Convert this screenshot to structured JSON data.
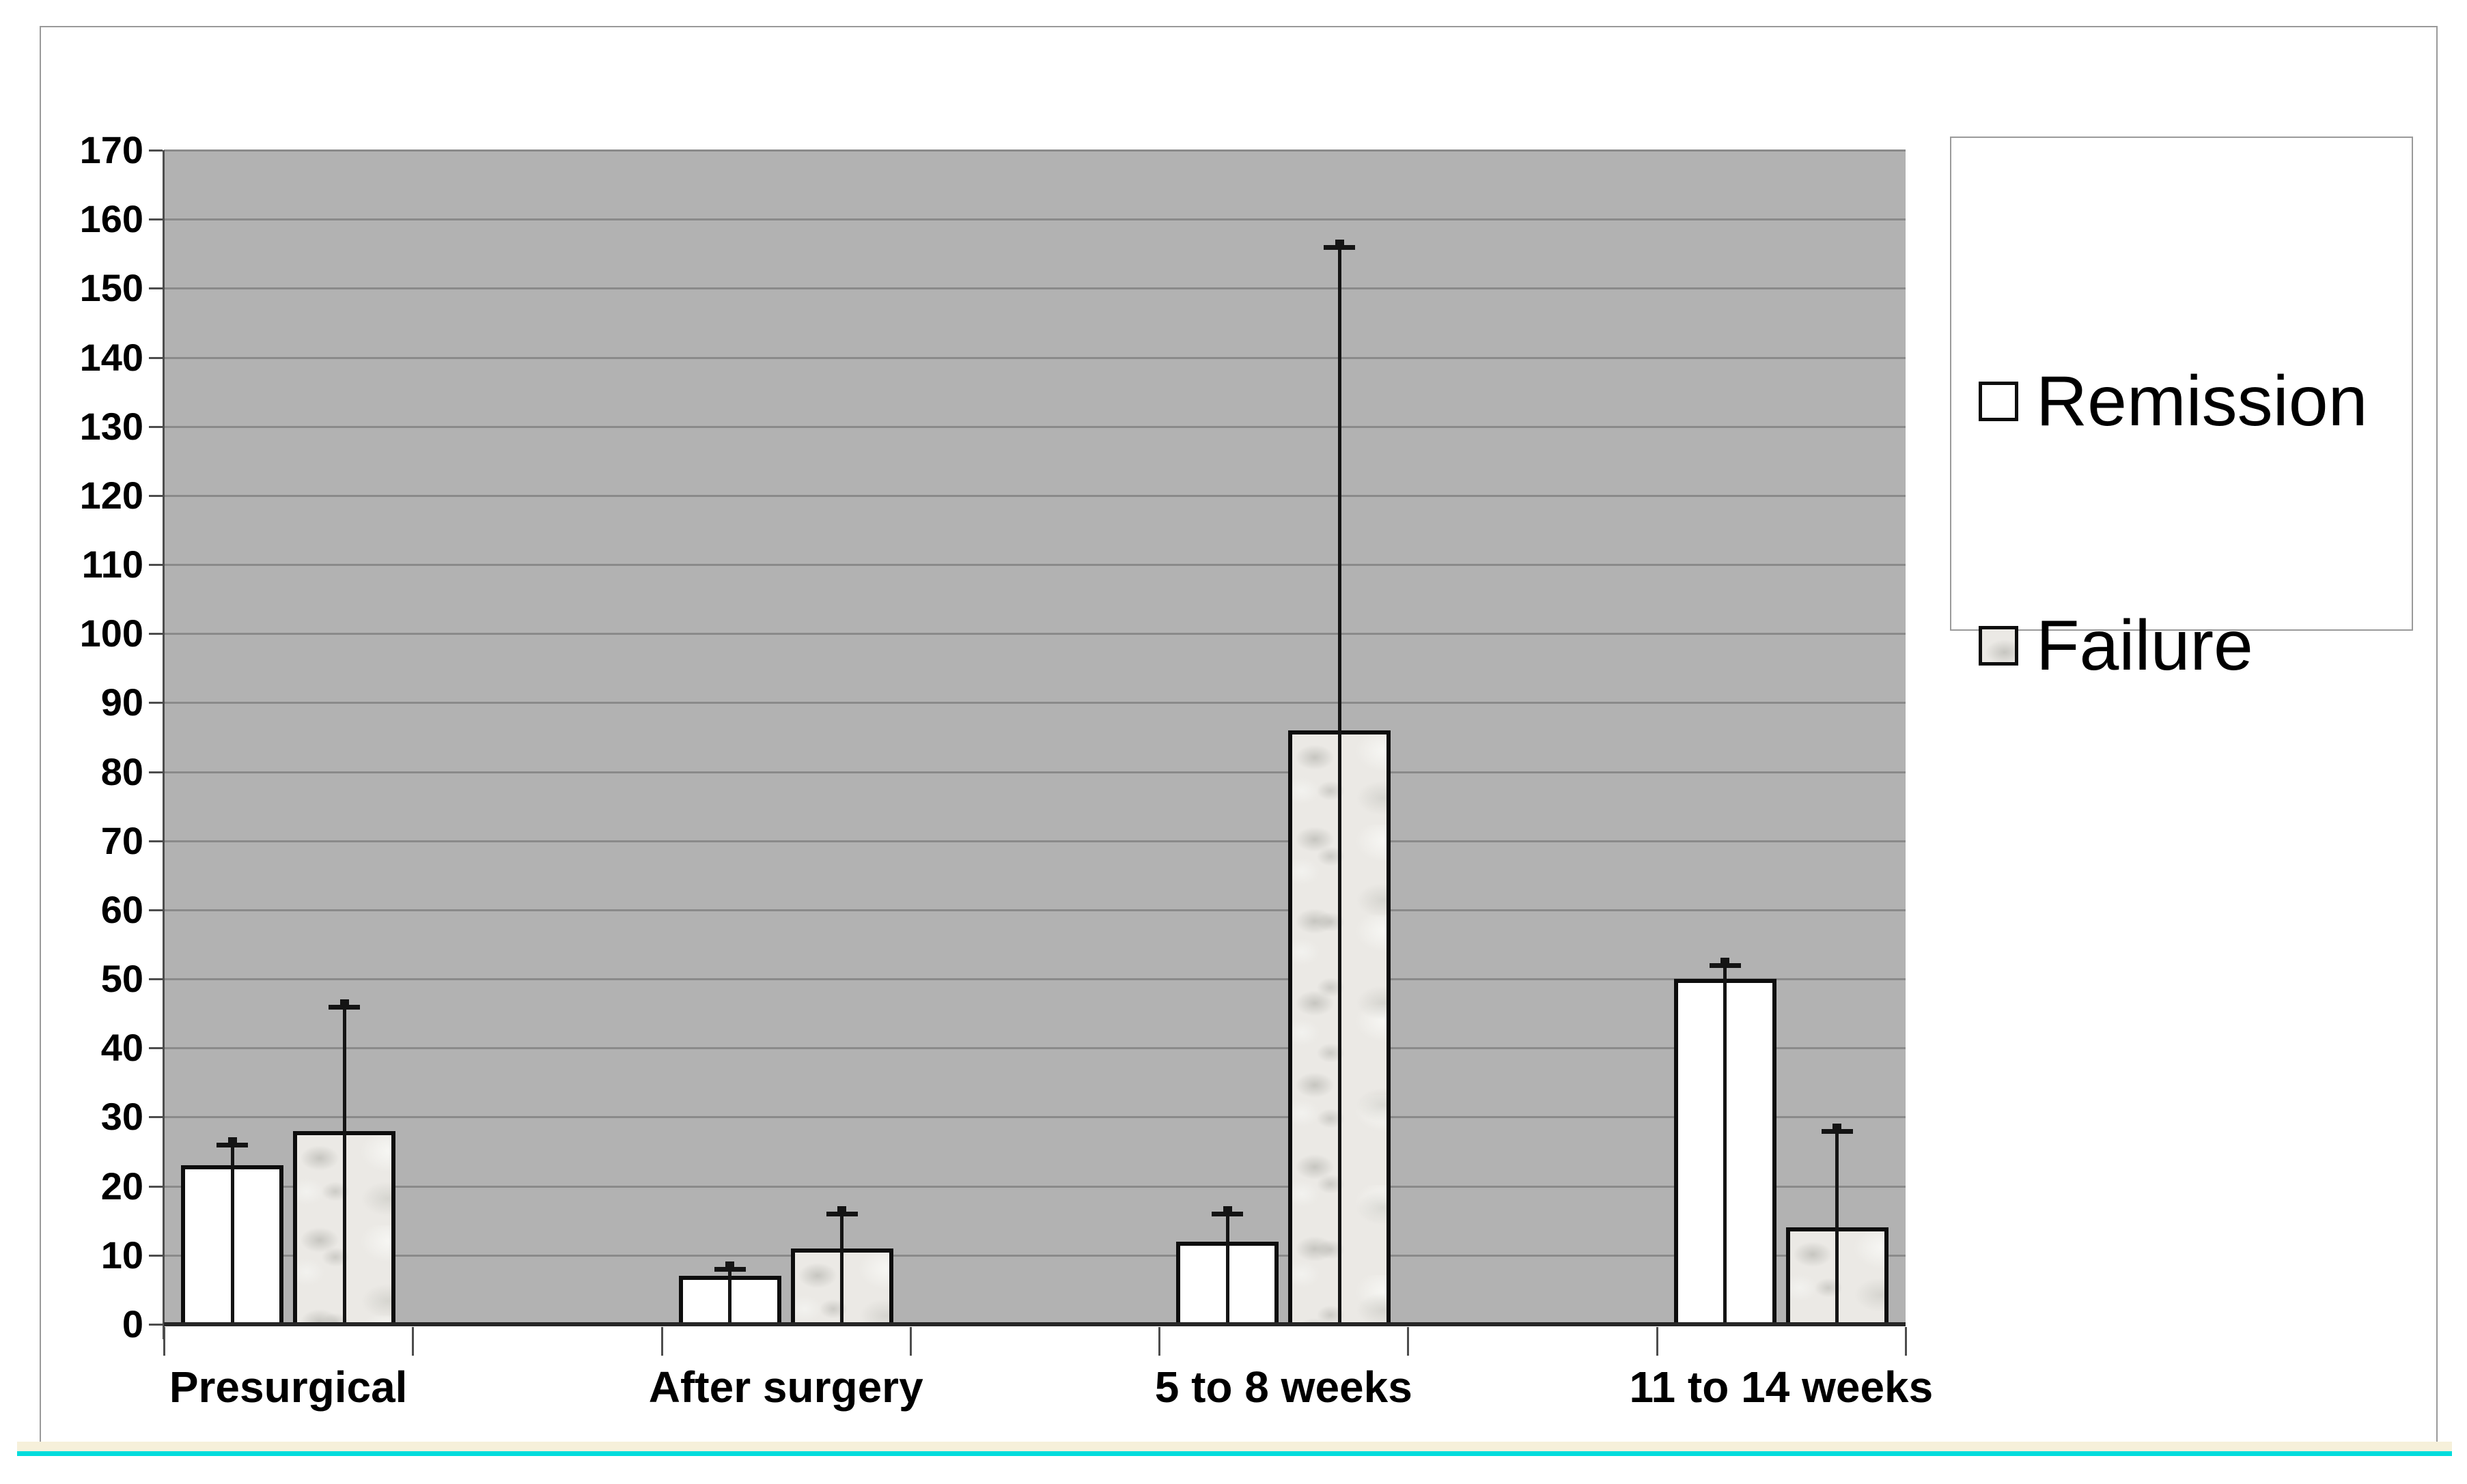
{
  "chart_data": {
    "type": "bar",
    "title": "",
    "categories": [
      "Presurgical",
      "After surgery",
      "5 to 8 weeks",
      "11 to 14 weeks"
    ],
    "series": [
      {
        "name": "Remission",
        "style": "white",
        "values": [
          23,
          7,
          12,
          50
        ],
        "error_top": [
          26,
          8,
          16,
          52
        ]
      },
      {
        "name": "Failure",
        "style": "marble",
        "values": [
          28,
          11,
          86,
          14
        ],
        "error_top": [
          46,
          16,
          156,
          28
        ]
      }
    ],
    "ylabel": "",
    "xlabel": "",
    "ylim": [
      0,
      170
    ],
    "ytick_step": 10,
    "grid": true,
    "legend_position": "right",
    "plot_background": "#b2b2b2",
    "gridline_color": "#8a8a8a"
  },
  "legend": {
    "items": [
      {
        "label": "Remission",
        "swatch": "white-square"
      },
      {
        "label": "Failure",
        "swatch": "marble-square"
      }
    ]
  },
  "decor": {
    "frame_color": "#9a9a9a",
    "cream_strip_color": "#f6f0da",
    "cyan_strip_color": "#00dcdc",
    "bar_border_color": "#0d0d0d",
    "error_bar_color": "#141414"
  }
}
